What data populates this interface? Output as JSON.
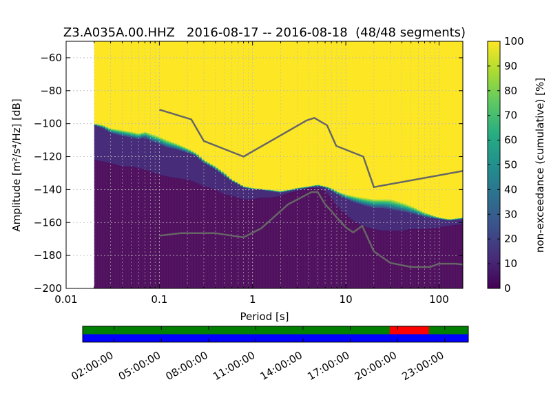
{
  "chart_data": [
    {
      "type": "heatmap",
      "title": "Z3.A035A.00.HHZ   2016-08-17 -- 2016-08-18  (48/48 segments)",
      "xlabel": "Period [s]",
      "ylabel": "Amplitude [m²/s⁴/Hz] [dB]",
      "x_scale": "log",
      "xlim": [
        0.01,
        180
      ],
      "ylim": [
        -200,
        -50
      ],
      "x_ticks": [
        {
          "value": 0.01,
          "label": "0.01"
        },
        {
          "value": 0.1,
          "label": "0.1"
        },
        {
          "value": 1,
          "label": "1"
        },
        {
          "value": 10,
          "label": "10"
        },
        {
          "value": 100,
          "label": "100"
        }
      ],
      "y_ticks": [
        {
          "value": -60,
          "label": "−60"
        },
        {
          "value": -80,
          "label": "−80"
        },
        {
          "value": -100,
          "label": "−100"
        },
        {
          "value": -120,
          "label": "−120"
        },
        {
          "value": -140,
          "label": "−140"
        },
        {
          "value": -160,
          "label": "−160"
        },
        {
          "value": -180,
          "label": "−180"
        },
        {
          "value": -200,
          "label": "−200"
        }
      ],
      "grid": true,
      "data_period_min": 0.02,
      "colorbar": {
        "label": "non-exceedance (cumulative) [%]",
        "range": [
          0,
          100
        ],
        "ticks": [
          "0",
          "10",
          "20",
          "30",
          "40",
          "50",
          "60",
          "70",
          "80",
          "90",
          "100"
        ],
        "colormap": [
          "#440154",
          "#472c7a",
          "#3b518b",
          "#2c718e",
          "#21908d",
          "#27ad81",
          "#5cc863",
          "#aadc32",
          "#fde725"
        ]
      },
      "percentile_bands": {
        "x": [
          0.02,
          0.025,
          0.03,
          0.04,
          0.05,
          0.06,
          0.07,
          0.08,
          0.1,
          0.12,
          0.15,
          0.2,
          0.25,
          0.3,
          0.4,
          0.5,
          0.6,
          0.7,
          0.8,
          1.0,
          1.2,
          1.5,
          2,
          2.5,
          3,
          4,
          5,
          6,
          7,
          8,
          10,
          12,
          15,
          20,
          25,
          30,
          40,
          50,
          70,
          100,
          130,
          180
        ],
        "p0_1_bottom": [
          -122,
          -123,
          -124,
          -126,
          -126,
          -127,
          -128,
          -129,
          -131,
          -132,
          -133,
          -134,
          -136,
          -138,
          -140,
          -143,
          -144,
          -145,
          -146,
          -146,
          -145,
          -145,
          -144,
          -142,
          -141,
          -139,
          -139,
          -141,
          -145,
          -150,
          -155,
          -159,
          -162,
          -164,
          -165,
          -165,
          -165,
          -164,
          -164,
          -163,
          -162,
          -161
        ],
        "p5_top": [
          -101,
          -103,
          -106,
          -108,
          -109,
          -110,
          -109,
          -111,
          -113,
          -115,
          -116,
          -118,
          -120,
          -124,
          -128,
          -132,
          -135,
          -137,
          -139,
          -140,
          -140,
          -141,
          -142,
          -141,
          -140,
          -139,
          -138,
          -139,
          -141,
          -143,
          -146,
          -148,
          -150,
          -152,
          -152,
          -153,
          -154,
          -155,
          -157,
          -158,
          -159,
          -158
        ],
        "p95_top": [
          -100,
          -101,
          -103,
          -104,
          -105,
          -106,
          -105,
          -106,
          -108,
          -110,
          -112,
          -115,
          -118,
          -122,
          -126,
          -130,
          -134,
          -136,
          -138,
          -139,
          -140,
          -140,
          -141,
          -140,
          -139,
          -138,
          -137,
          -138,
          -139,
          -141,
          -143,
          -144,
          -145,
          -146,
          -146,
          -146,
          -148,
          -150,
          -154,
          -157,
          -158,
          -157
        ]
      },
      "series": [
        {
          "x": [
            0.1,
            0.22,
            0.3,
            0.8,
            3.8,
            4.6,
            6.3,
            7.9,
            15.4,
            20,
            180
          ],
          "values": [
            -91.5,
            -97.4,
            -110.5,
            -120.0,
            -98.0,
            -96.5,
            -101.0,
            -113.5,
            -120.0,
            -138.5,
            -128.7
          ],
          "color": "#666666"
        },
        {
          "x": [
            0.1,
            0.17,
            0.4,
            0.8,
            1.24,
            2.4,
            4.3,
            5.0,
            6.0,
            7.0,
            8.0,
            10.0,
            12.0,
            15.0,
            20.0,
            30.0,
            50.0,
            80.0,
            100.0,
            150.0,
            180.0
          ],
          "values": [
            -168.0,
            -166.5,
            -166.5,
            -169.0,
            -163.5,
            -149.0,
            -141.5,
            -141.5,
            -149.0,
            -153.0,
            -157.0,
            -163.0,
            -166.0,
            -162.0,
            -177.5,
            -184.5,
            -187.0,
            -187.0,
            -185.0,
            -185.0,
            -185.5
          ],
          "color": "#666666"
        }
      ]
    },
    {
      "type": "timeline",
      "x_ticks": [
        "02:00:00",
        "05:00:00",
        "08:00:00",
        "11:00:00",
        "14:00:00",
        "17:00:00",
        "20:00:00",
        "23:00:00"
      ],
      "x_tick_hours": [
        2,
        5,
        8,
        11,
        14,
        17,
        20,
        23
      ],
      "time_range_hours": [
        0,
        24.5
      ],
      "rows": [
        {
          "color": "#008000",
          "gaps_color": "#ff0000",
          "gaps_hours": [
            [
              19.5,
              22.0
            ]
          ]
        },
        {
          "color": "#0000ff",
          "gaps_color": "",
          "gaps_hours": []
        }
      ]
    }
  ]
}
